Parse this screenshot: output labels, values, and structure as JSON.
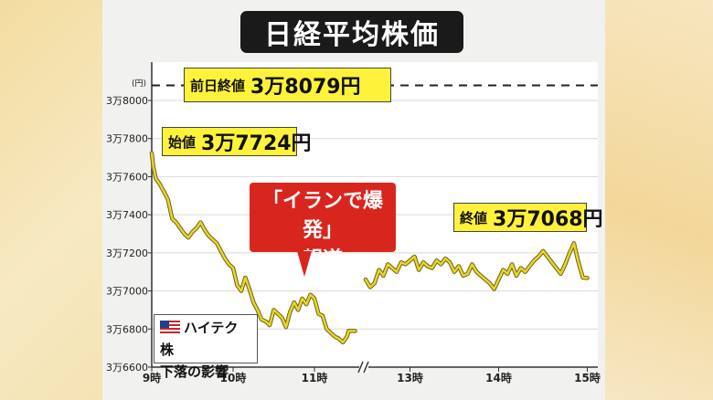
{
  "title": "日経平均株価",
  "colors": {
    "line": "#e6d62a",
    "callout_red": "#d8261e",
    "label_yellow": "#fff23a",
    "title_bg": "#1a1a1a"
  },
  "annotations": {
    "prev_close": {
      "label": "前日終値",
      "value": "3万8079円"
    },
    "open": {
      "label": "始値",
      "value": "3万7724円"
    },
    "close": {
      "label": "終値",
      "value": "3万7068円"
    },
    "news_line1": "「イランで爆発」",
    "news_line2": "報道",
    "note_line1": "ハイテク株",
    "note_line2": "下落の影響"
  },
  "chart_data": {
    "type": "line",
    "title": "日経平均株価",
    "y_unit": "(円)",
    "ylim": [
      36600,
      38000
    ],
    "yticks": [
      36600,
      36800,
      37000,
      37200,
      37400,
      37600,
      37800,
      38000
    ],
    "ytick_labels": [
      "3万6600",
      "3万6800",
      "3万7000",
      "3万7200",
      "3万7400",
      "3万7600",
      "3万7800",
      "3万8000"
    ],
    "xticks": [
      {
        "t": 9.0,
        "label": "9時"
      },
      {
        "t": 10.0,
        "label": "10時"
      },
      {
        "t": 11.0,
        "label": "11時"
      },
      {
        "t": 13.0,
        "label": "13時"
      },
      {
        "t": 14.0,
        "label": "14時"
      },
      {
        "t": 15.0,
        "label": "15時"
      }
    ],
    "reference_line": {
      "value": 38079,
      "label": "前日終値"
    },
    "axis_break": "11:30-12:30 lunch break",
    "series": [
      {
        "session": "morning",
        "x": [
          9.0,
          9.02,
          9.05,
          9.1,
          9.15,
          9.2,
          9.25,
          9.3,
          9.35,
          9.4,
          9.45,
          9.5,
          9.55,
          9.6,
          9.65,
          9.7,
          9.75,
          9.8,
          9.85,
          9.9,
          9.95,
          10.0,
          10.05,
          10.1,
          10.15,
          10.2,
          10.25,
          10.3,
          10.35,
          10.4,
          10.45,
          10.5,
          10.55,
          10.6,
          10.65,
          10.7,
          10.75,
          10.8,
          10.85,
          10.9,
          10.95,
          11.0,
          11.05,
          11.1,
          11.15,
          11.2,
          11.25,
          11.3,
          11.35,
          11.4,
          11.42,
          11.5
        ],
        "values": [
          37724,
          37650,
          37590,
          37560,
          37520,
          37480,
          37380,
          37360,
          37330,
          37300,
          37280,
          37310,
          37330,
          37360,
          37320,
          37290,
          37270,
          37250,
          37210,
          37170,
          37140,
          37120,
          37030,
          37000,
          37070,
          37010,
          36940,
          36900,
          36850,
          36840,
          36820,
          36900,
          36880,
          36860,
          36810,
          36890,
          36940,
          36900,
          36960,
          36930,
          36980,
          36960,
          36880,
          36870,
          36800,
          36780,
          36760,
          36750,
          36730,
          36760,
          36790,
          36790
        ]
      },
      {
        "session": "afternoon",
        "x": [
          12.5,
          12.55,
          12.6,
          12.65,
          12.7,
          12.75,
          12.8,
          12.85,
          12.9,
          12.95,
          13.0,
          13.05,
          13.1,
          13.15,
          13.2,
          13.25,
          13.3,
          13.35,
          13.4,
          13.45,
          13.5,
          13.55,
          13.6,
          13.65,
          13.7,
          13.75,
          13.8,
          13.85,
          13.9,
          13.95,
          14.0,
          14.05,
          14.1,
          14.15,
          14.2,
          14.25,
          14.3,
          14.35,
          14.4,
          14.45,
          14.5,
          14.55,
          14.6,
          14.65,
          14.7,
          14.75,
          14.8,
          14.85,
          14.9,
          14.95,
          15.0
        ],
        "values": [
          37060,
          37020,
          37040,
          37110,
          37080,
          37140,
          37120,
          37100,
          37150,
          37140,
          37160,
          37180,
          37110,
          37150,
          37130,
          37120,
          37160,
          37140,
          37170,
          37150,
          37100,
          37130,
          37080,
          37090,
          37140,
          37100,
          37080,
          37060,
          37040,
          37010,
          37060,
          37110,
          37090,
          37140,
          37080,
          37120,
          37100,
          37130,
          37160,
          37180,
          37210,
          37180,
          37150,
          37120,
          37090,
          37140,
          37200,
          37250,
          37150,
          37070,
          37068
        ]
      }
    ]
  }
}
